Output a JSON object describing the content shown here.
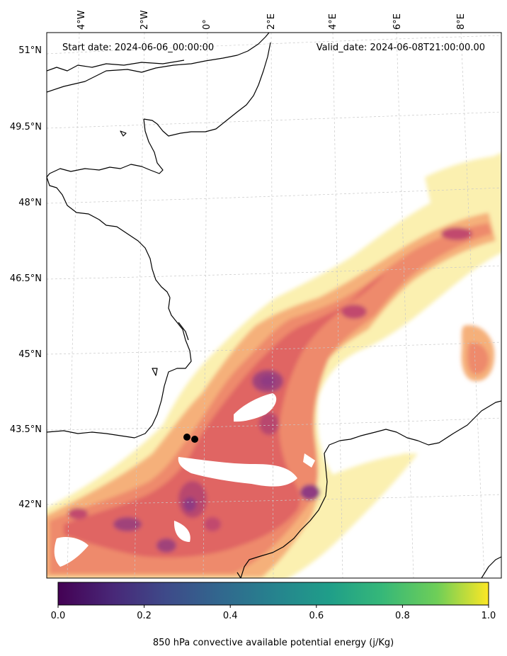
{
  "header": {
    "start_date": "Start date: 2024-06-06_00:00:00",
    "valid_date": "Valid_date: 2024-06-08T21:00:00.00"
  },
  "map": {
    "longitude_labels": [
      "4°W",
      "2°W",
      "0°",
      "2°E",
      "4°E",
      "6°E",
      "8°E"
    ],
    "latitude_labels": [
      "51°N",
      "49.5°N",
      "48°N",
      "46.5°N",
      "45°N",
      "43.5°N",
      "42°N"
    ],
    "field_palette": [
      "#fbf0b0",
      "#f8d890",
      "#f5b07a",
      "#ee8a6c",
      "#e06564",
      "#c14a6e",
      "#8f3a82"
    ]
  },
  "colorbar": {
    "label": "850 hPa convective available potential energy (j/Kg)",
    "ticks": [
      "0.0",
      "0.2",
      "0.4",
      "0.6",
      "0.8",
      "1.0"
    ],
    "colormap": [
      "#440154",
      "#3b528b",
      "#21918c",
      "#5ec962",
      "#fde725"
    ]
  }
}
